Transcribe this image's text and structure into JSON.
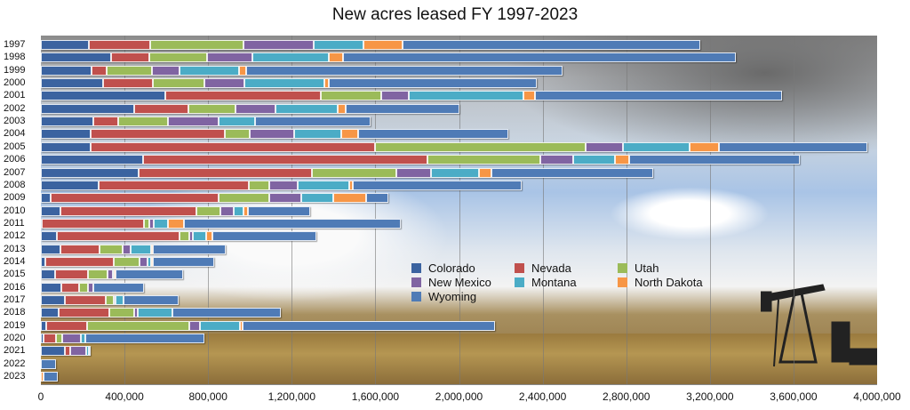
{
  "chart_data": {
    "type": "bar",
    "orientation": "horizontal-stacked",
    "title": "New acres leased FY 1997-2023",
    "xlabel": "",
    "ylabel": "",
    "xlim": [
      0,
      4000000
    ],
    "x_ticks": [
      "0",
      "400,000",
      "800,000",
      "1,200,000",
      "1,600,000",
      "2,000,000",
      "2,400,000",
      "2,800,000",
      "3,200,000",
      "3,600,000",
      "4,000,000"
    ],
    "grid": true,
    "legend_placement": "bottom-center",
    "categories": [
      "1997",
      "1998",
      "1999",
      "2000",
      "2001",
      "2002",
      "2003",
      "2004",
      "2005",
      "2006",
      "2007",
      "2008",
      "2009",
      "2010",
      "2011",
      "2012",
      "2013",
      "2014",
      "2015",
      "2016",
      "2017",
      "2018",
      "2019",
      "2020",
      "2021",
      "2022",
      "2023"
    ],
    "series": [
      {
        "name": "Colorado",
        "color": "#3b63a0",
        "values": [
          230000,
          336000,
          243000,
          298000,
          596000,
          447000,
          251000,
          238000,
          238000,
          489000,
          468000,
          277000,
          47000,
          94000,
          5000,
          77000,
          94000,
          21000,
          68000,
          98000,
          115000,
          85000,
          26000,
          13000,
          115000,
          0,
          0
        ]
      },
      {
        "name": "Nevada",
        "color": "#c0504d",
        "values": [
          294000,
          183000,
          72000,
          238000,
          745000,
          260000,
          119000,
          642000,
          1362000,
          1362000,
          830000,
          719000,
          804000,
          651000,
          489000,
          587000,
          187000,
          328000,
          157000,
          85000,
          196000,
          243000,
          196000,
          60000,
          26000,
          0,
          0
        ]
      },
      {
        "name": "Utah",
        "color": "#9bbb59",
        "values": [
          447000,
          277000,
          217000,
          247000,
          289000,
          226000,
          238000,
          119000,
          1004000,
          540000,
          404000,
          98000,
          243000,
          115000,
          26000,
          47000,
          111000,
          123000,
          94000,
          43000,
          38000,
          119000,
          489000,
          30000,
          0,
          0,
          0
        ]
      },
      {
        "name": "New Mexico",
        "color": "#8064a2",
        "values": [
          332000,
          217000,
          132000,
          191000,
          128000,
          191000,
          243000,
          213000,
          179000,
          157000,
          166000,
          136000,
          153000,
          64000,
          21000,
          17000,
          38000,
          38000,
          26000,
          26000,
          9000,
          17000,
          51000,
          89000,
          77000,
          0,
          0
        ]
      },
      {
        "name": "Montana",
        "color": "#4bacc6",
        "values": [
          238000,
          366000,
          285000,
          383000,
          549000,
          294000,
          174000,
          226000,
          319000,
          200000,
          226000,
          243000,
          153000,
          47000,
          68000,
          64000,
          98000,
          17000,
          4000,
          0,
          38000,
          166000,
          191000,
          21000,
          13000,
          0,
          0
        ]
      },
      {
        "name": "North Dakota",
        "color": "#f79646",
        "values": [
          191000,
          68000,
          34000,
          21000,
          55000,
          38000,
          0,
          81000,
          140000,
          64000,
          60000,
          17000,
          157000,
          21000,
          77000,
          30000,
          9000,
          9000,
          9000,
          0,
          0,
          0,
          13000,
          0,
          0,
          0,
          13000
        ]
      },
      {
        "name": "Wyoming",
        "color": "#4f7bb6",
        "values": [
          1421000,
          1876000,
          1511000,
          996000,
          1183000,
          545000,
          553000,
          719000,
          711000,
          817000,
          774000,
          808000,
          106000,
          294000,
          1034000,
          494000,
          349000,
          294000,
          323000,
          243000,
          264000,
          519000,
          1208000,
          570000,
          9000,
          72000,
          68000
        ]
      }
    ]
  }
}
